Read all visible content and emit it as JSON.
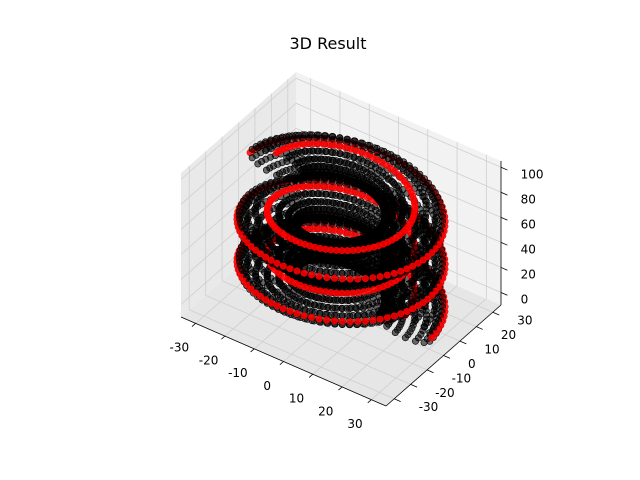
{
  "chart_data": {
    "type": "scatter",
    "projection": "3d",
    "title": "3D Result",
    "xlabel": "",
    "ylabel": "",
    "zlabel": "",
    "xlim": [
      -35,
      35
    ],
    "ylim": [
      -35,
      35
    ],
    "zlim": [
      -10,
      105
    ],
    "x_ticks": [
      "-30",
      "-20",
      "-10",
      "0",
      "10",
      "20",
      "30"
    ],
    "y_ticks": [
      "-30",
      "-20",
      "-10",
      "0",
      "10",
      "20",
      "30"
    ],
    "z_ticks": [
      "0",
      "20",
      "40",
      "60",
      "80",
      "100"
    ],
    "grid": true,
    "colors": {
      "highlight": "#ff0000",
      "base": "#000000"
    },
    "surface": {
      "shape": "helical tube",
      "coil_radius": 22,
      "tube_radius": 9,
      "turns": 2.5,
      "z_range": [
        0,
        85
      ],
      "highlight_series_color": "red",
      "base_series_color": "black"
    }
  }
}
